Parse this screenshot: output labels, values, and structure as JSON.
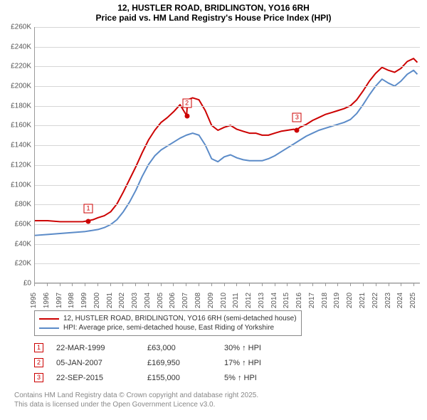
{
  "title_line1": "12, HUSTLER ROAD, BRIDLINGTON, YO16 6RH",
  "title_line2": "Price paid vs. HM Land Registry's House Price Index (HPI)",
  "chart": {
    "type": "line",
    "x_min": 1995,
    "x_max": 2025.5,
    "y_min": 0,
    "y_max": 260000,
    "ytick_step": 20000,
    "ytick_labels": [
      "£0",
      "£20K",
      "£40K",
      "£60K",
      "£80K",
      "£100K",
      "£120K",
      "£140K",
      "£160K",
      "£180K",
      "£200K",
      "£220K",
      "£240K",
      "£260K"
    ],
    "xtick_step": 1,
    "xtick_labels": [
      "1995",
      "1996",
      "1997",
      "1998",
      "1999",
      "2000",
      "2001",
      "2002",
      "2003",
      "2004",
      "2005",
      "2006",
      "2007",
      "2008",
      "2009",
      "2010",
      "2011",
      "2012",
      "2013",
      "2014",
      "2015",
      "2016",
      "2017",
      "2018",
      "2019",
      "2020",
      "2021",
      "2022",
      "2023",
      "2024",
      "2025"
    ],
    "grid_color": "#d6d6d6",
    "axis_color": "#999999",
    "background_color": "#ffffff",
    "label_fontsize": 10,
    "line_width": 2,
    "series": [
      {
        "name": "price_paid",
        "label": "12, HUSTLER ROAD, BRIDLINGTON, YO16 6RH (semi-detached house)",
        "color": "#cc0000",
        "points": [
          [
            1995.0,
            63000
          ],
          [
            1996.0,
            63000
          ],
          [
            1997.0,
            62000
          ],
          [
            1998.0,
            62000
          ],
          [
            1998.8,
            62000
          ],
          [
            1999.22,
            63000
          ],
          [
            1999.6,
            64000
          ],
          [
            2000.0,
            66000
          ],
          [
            2000.5,
            68000
          ],
          [
            2001.0,
            72000
          ],
          [
            2001.5,
            80000
          ],
          [
            2002.0,
            92000
          ],
          [
            2002.5,
            105000
          ],
          [
            2003.0,
            118000
          ],
          [
            2003.5,
            132000
          ],
          [
            2004.0,
            145000
          ],
          [
            2004.5,
            155000
          ],
          [
            2005.0,
            163000
          ],
          [
            2005.5,
            168000
          ],
          [
            2006.0,
            174000
          ],
          [
            2006.5,
            181000
          ],
          [
            2007.02,
            169950
          ],
          [
            2007.1,
            186000
          ],
          [
            2007.5,
            188000
          ],
          [
            2008.0,
            186000
          ],
          [
            2008.5,
            175000
          ],
          [
            2009.0,
            160000
          ],
          [
            2009.5,
            155000
          ],
          [
            2010.0,
            158000
          ],
          [
            2010.5,
            160000
          ],
          [
            2011.0,
            156000
          ],
          [
            2011.5,
            154000
          ],
          [
            2012.0,
            152000
          ],
          [
            2012.5,
            152000
          ],
          [
            2013.0,
            150000
          ],
          [
            2013.5,
            150000
          ],
          [
            2014.0,
            152000
          ],
          [
            2014.5,
            154000
          ],
          [
            2015.0,
            155000
          ],
          [
            2015.5,
            156000
          ],
          [
            2015.73,
            155000
          ],
          [
            2016.0,
            158000
          ],
          [
            2016.5,
            161000
          ],
          [
            2017.0,
            165000
          ],
          [
            2017.5,
            168000
          ],
          [
            2018.0,
            171000
          ],
          [
            2018.5,
            173000
          ],
          [
            2019.0,
            175000
          ],
          [
            2019.5,
            177000
          ],
          [
            2020.0,
            180000
          ],
          [
            2020.5,
            186000
          ],
          [
            2021.0,
            195000
          ],
          [
            2021.5,
            205000
          ],
          [
            2022.0,
            213000
          ],
          [
            2022.5,
            219000
          ],
          [
            2023.0,
            216000
          ],
          [
            2023.5,
            214000
          ],
          [
            2024.0,
            218000
          ],
          [
            2024.5,
            225000
          ],
          [
            2025.0,
            228000
          ],
          [
            2025.3,
            224000
          ]
        ]
      },
      {
        "name": "hpi",
        "label": "HPI: Average price, semi-detached house, East Riding of Yorkshire",
        "color": "#5b8bc8",
        "points": [
          [
            1995.0,
            48000
          ],
          [
            1996.0,
            49000
          ],
          [
            1997.0,
            50000
          ],
          [
            1998.0,
            51000
          ],
          [
            1999.0,
            52000
          ],
          [
            2000.0,
            54000
          ],
          [
            2000.5,
            56000
          ],
          [
            2001.0,
            59000
          ],
          [
            2001.5,
            64000
          ],
          [
            2002.0,
            72000
          ],
          [
            2002.5,
            82000
          ],
          [
            2003.0,
            94000
          ],
          [
            2003.5,
            108000
          ],
          [
            2004.0,
            120000
          ],
          [
            2004.5,
            129000
          ],
          [
            2005.0,
            135000
          ],
          [
            2005.5,
            139000
          ],
          [
            2006.0,
            143000
          ],
          [
            2006.5,
            147000
          ],
          [
            2007.0,
            150000
          ],
          [
            2007.5,
            152000
          ],
          [
            2008.0,
            150000
          ],
          [
            2008.5,
            140000
          ],
          [
            2009.0,
            126000
          ],
          [
            2009.5,
            123000
          ],
          [
            2010.0,
            128000
          ],
          [
            2010.5,
            130000
          ],
          [
            2011.0,
            127000
          ],
          [
            2011.5,
            125000
          ],
          [
            2012.0,
            124000
          ],
          [
            2012.5,
            124000
          ],
          [
            2013.0,
            124000
          ],
          [
            2013.5,
            126000
          ],
          [
            2014.0,
            129000
          ],
          [
            2014.5,
            133000
          ],
          [
            2015.0,
            137000
          ],
          [
            2015.5,
            141000
          ],
          [
            2016.0,
            145000
          ],
          [
            2016.5,
            149000
          ],
          [
            2017.0,
            152000
          ],
          [
            2017.5,
            155000
          ],
          [
            2018.0,
            157000
          ],
          [
            2018.5,
            159000
          ],
          [
            2019.0,
            161000
          ],
          [
            2019.5,
            163000
          ],
          [
            2020.0,
            166000
          ],
          [
            2020.5,
            172000
          ],
          [
            2021.0,
            181000
          ],
          [
            2021.5,
            191000
          ],
          [
            2022.0,
            200000
          ],
          [
            2022.5,
            207000
          ],
          [
            2023.0,
            203000
          ],
          [
            2023.5,
            200000
          ],
          [
            2024.0,
            205000
          ],
          [
            2024.5,
            212000
          ],
          [
            2025.0,
            216000
          ],
          [
            2025.3,
            212000
          ]
        ]
      }
    ],
    "markers": [
      {
        "n": "1",
        "x": 1999.22,
        "y": 63000
      },
      {
        "n": "2",
        "x": 2007.02,
        "y": 169950
      },
      {
        "n": "3",
        "x": 2015.73,
        "y": 155000
      }
    ]
  },
  "legend": {
    "items": [
      {
        "color": "#cc0000",
        "label": "12, HUSTLER ROAD, BRIDLINGTON, YO16 6RH (semi-detached house)"
      },
      {
        "color": "#5b8bc8",
        "label": "HPI: Average price, semi-detached house, East Riding of Yorkshire"
      }
    ]
  },
  "sales": [
    {
      "n": "1",
      "date": "22-MAR-1999",
      "price": "£63,000",
      "delta": "30% ↑ HPI"
    },
    {
      "n": "2",
      "date": "05-JAN-2007",
      "price": "£169,950",
      "delta": "17% ↑ HPI"
    },
    {
      "n": "3",
      "date": "22-SEP-2015",
      "price": "£155,000",
      "delta": "5% ↑ HPI"
    }
  ],
  "footer": {
    "line1": "Contains HM Land Registry data © Crown copyright and database right 2025.",
    "line2": "This data is licensed under the Open Government Licence v3.0."
  }
}
